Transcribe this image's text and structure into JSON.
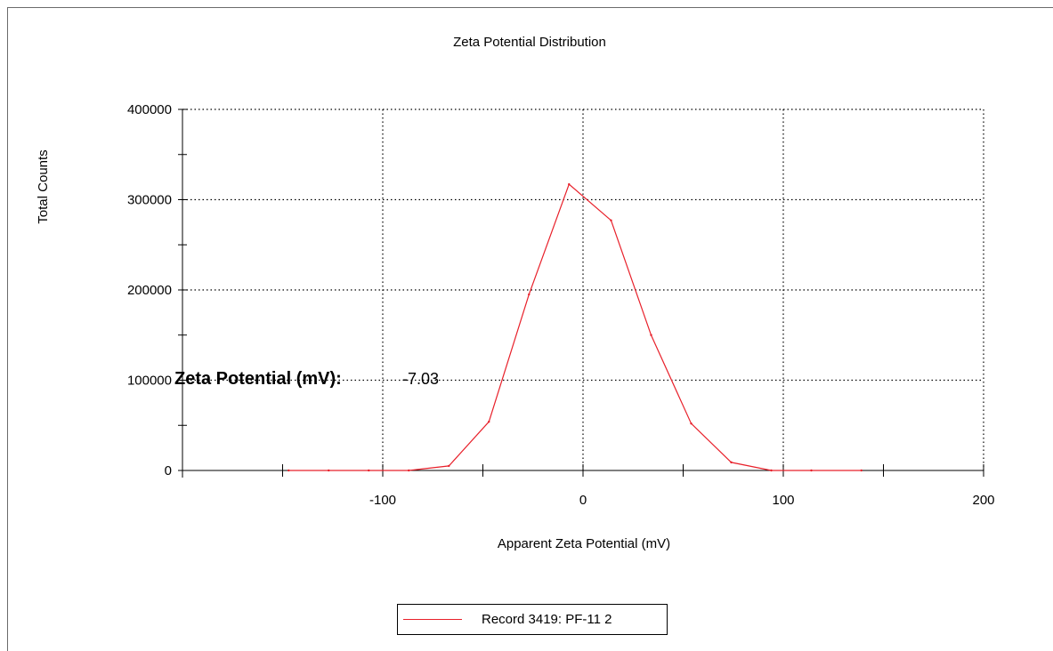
{
  "chart_data": {
    "type": "line",
    "title": "Zeta Potential Distribution",
    "xlabel": "Apparent Zeta Potential (mV)",
    "ylabel": "Total Counts",
    "xlim": [
      -200,
      200
    ],
    "ylim": [
      0,
      400000
    ],
    "x_ticks": [
      -100,
      0,
      100,
      200
    ],
    "y_ticks": [
      0,
      100000,
      200000,
      300000,
      400000
    ],
    "grid": true,
    "legend_position": "bottom-center",
    "series": [
      {
        "name": "Record 3419: PF-11 2",
        "color": "#e8202a",
        "points": [
          [
            -147,
            0
          ],
          [
            -127,
            0
          ],
          [
            -107,
            0
          ],
          [
            -87,
            0
          ],
          [
            -67,
            5000
          ],
          [
            -47,
            54000
          ],
          [
            -27,
            195000
          ],
          [
            -7,
            317000
          ],
          [
            14,
            277000
          ],
          [
            34,
            150000
          ],
          [
            54,
            52000
          ],
          [
            74,
            9000
          ],
          [
            94,
            0
          ],
          [
            114,
            0
          ],
          [
            139,
            0
          ]
        ]
      }
    ],
    "annotation": {
      "label": "Zeta Potential (mV):",
      "value": "-7.03"
    }
  }
}
